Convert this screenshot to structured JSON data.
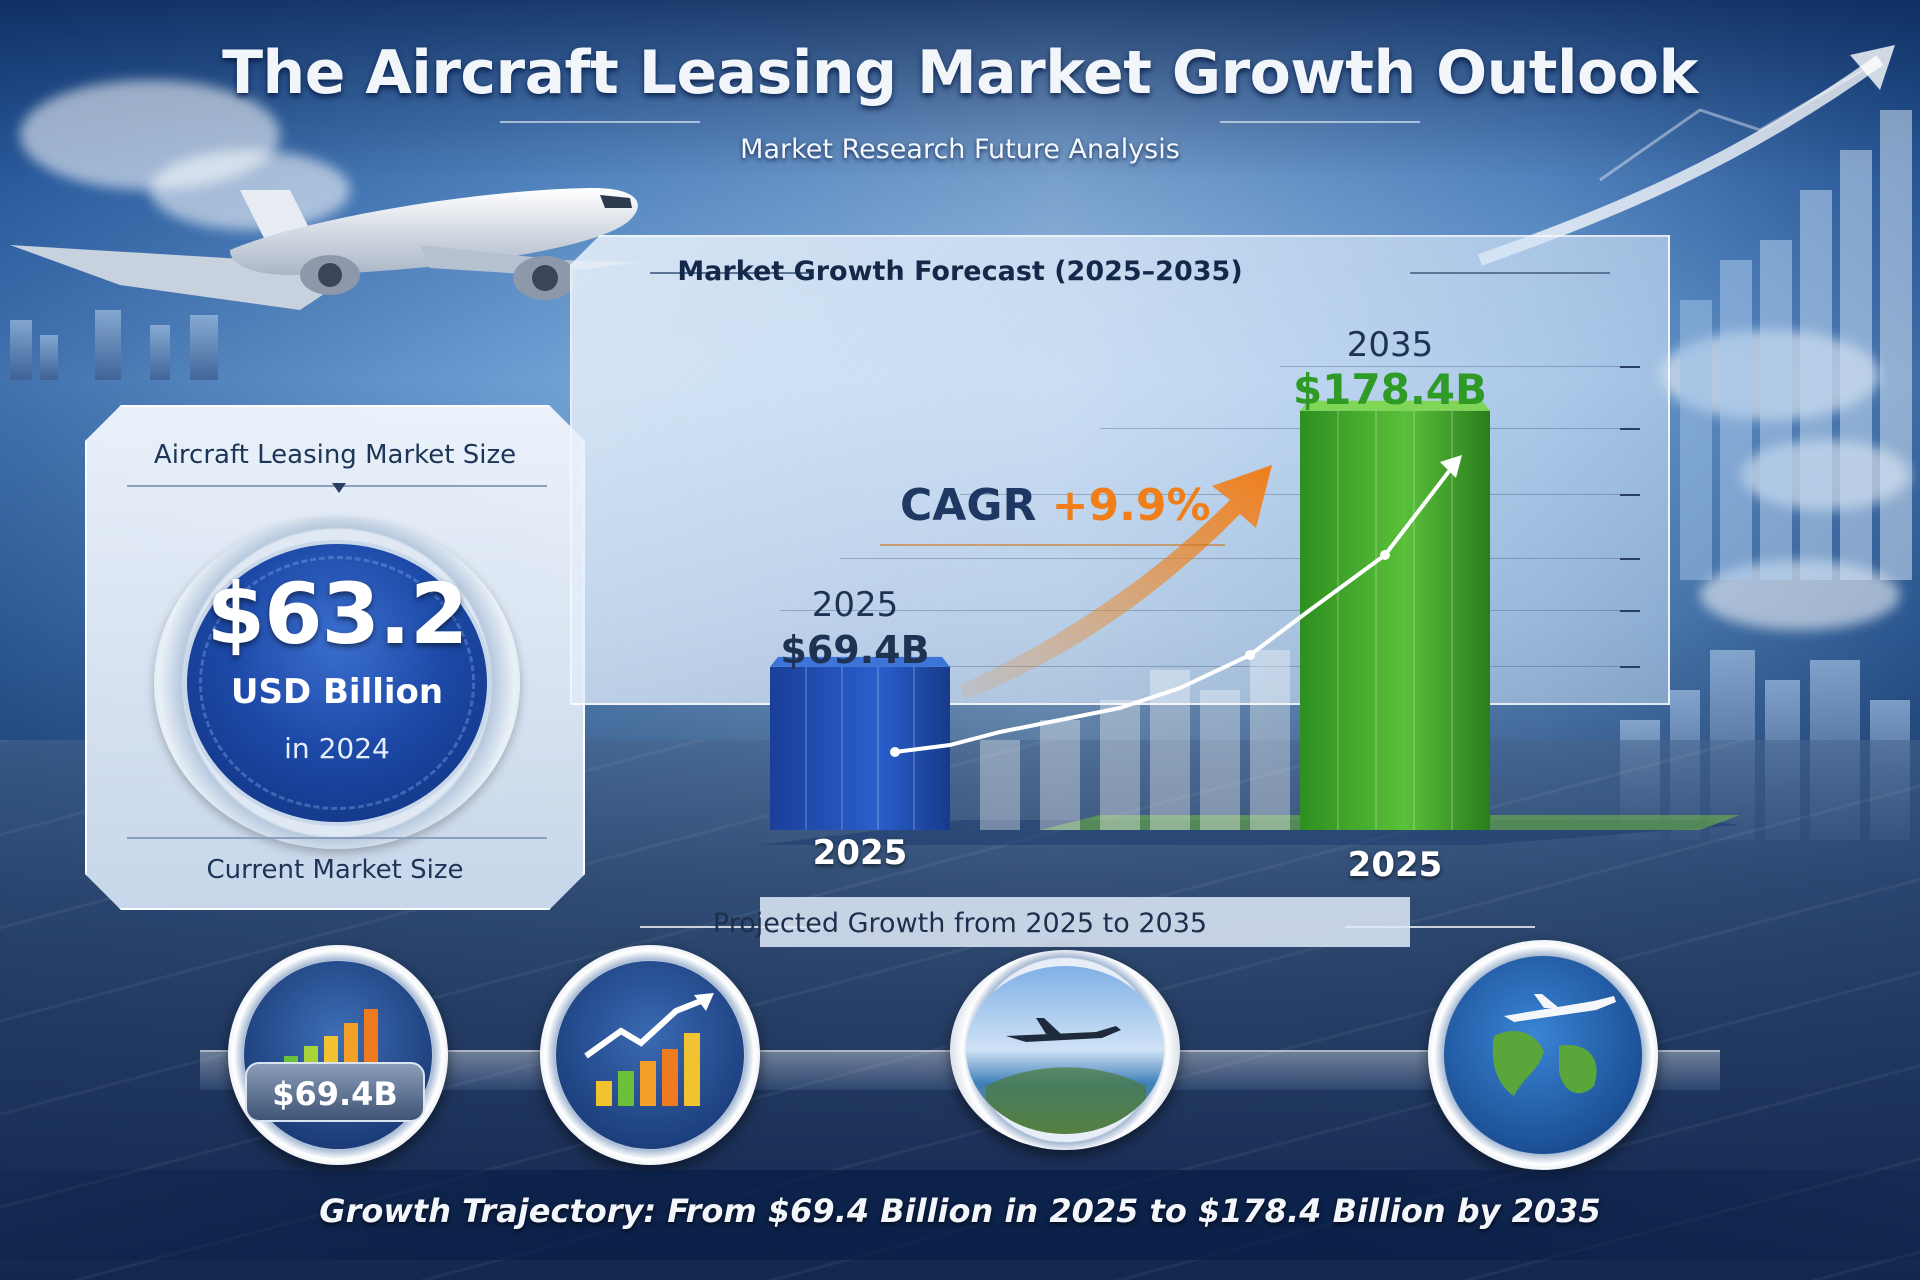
{
  "header": {
    "title": "The Aircraft Leasing Market Growth Outlook",
    "subtitle": "Market Research Future Analysis"
  },
  "market_size_card": {
    "heading": "Aircraft Leasing Market Size",
    "value": "$63.2",
    "unit": "USD Billion",
    "year": "in 2024",
    "footer": "Current Market Size"
  },
  "forecast": {
    "title": "Market Growth Forecast (2025–2035)",
    "cagr_prefix": "CAGR",
    "cagr_value": "+9.9%",
    "start_bar": {
      "year_label": "2025",
      "value_label": "$69.4B",
      "base_label": "2025"
    },
    "end_bar": {
      "year_label": "2035",
      "value_label": "$178.4B",
      "base_label": "2025"
    },
    "projected_caption": "Projected Growth from 2025 to 2035"
  },
  "chart_data": {
    "type": "bar",
    "categories": [
      "2025",
      "2035"
    ],
    "values": [
      69.4,
      178.4
    ],
    "title": "Market Growth Forecast (2025–2035)",
    "xlabel": "",
    "ylabel": "",
    "ylim": [
      0,
      200
    ],
    "colors": [
      "#1f4fb5",
      "#3fa82a"
    ],
    "annotation": "CAGR +9.9%"
  },
  "icons": [
    {
      "name": "bar-chart-icon",
      "value_label": "$69.4B"
    },
    {
      "name": "growth-chart-icon"
    },
    {
      "name": "airplane-over-earth-icon"
    },
    {
      "name": "globe-airplane-icon"
    }
  ],
  "footer": {
    "text": "Growth Trajectory: From $69.4 Billion in 2025 to $178.4 Billion by 2035"
  },
  "colors": {
    "accent_blue": "#1d4aa8",
    "accent_green": "#3fa82a",
    "accent_orange": "#f07e1a",
    "dark_navy": "#14294a"
  }
}
